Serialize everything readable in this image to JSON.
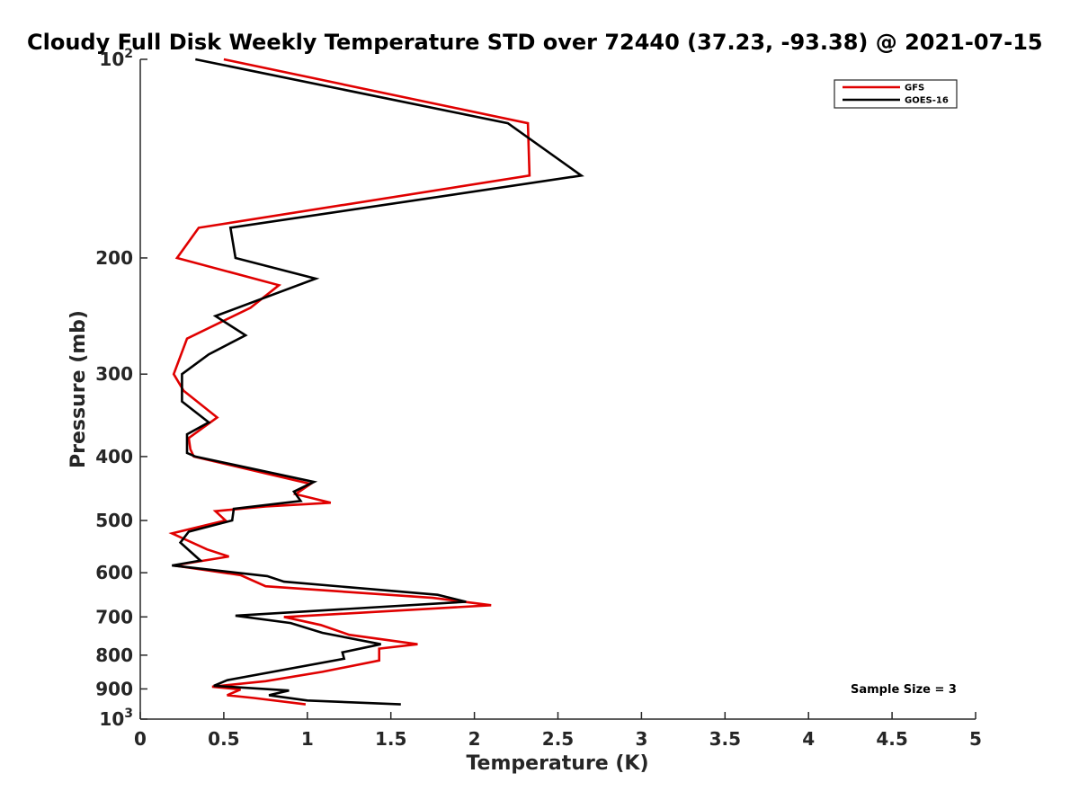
{
  "chart_data": {
    "type": "line",
    "title": "Cloudy Full Disk Weekly Temperature STD over 72440 (37.23, -93.38) @ 2021-07-15",
    "xlabel": "Temperature (K)",
    "ylabel": "Pressure (mb)",
    "xlim": [
      0,
      5
    ],
    "ylim": [
      100,
      1000
    ],
    "y_scale": "log",
    "y_reversed": true,
    "x_ticks": [
      "0",
      "0.5",
      "1",
      "1.5",
      "2",
      "2.5",
      "3",
      "3.5",
      "4",
      "4.5",
      "5"
    ],
    "x_tick_values": [
      0,
      0.5,
      1,
      1.5,
      2,
      2.5,
      3,
      3.5,
      4,
      4.5,
      5
    ],
    "y_ticks": [
      {
        "value": 100,
        "base": "10",
        "exp": "2"
      },
      {
        "value": 200,
        "label": "200"
      },
      {
        "value": 300,
        "label": "300"
      },
      {
        "value": 400,
        "label": "400"
      },
      {
        "value": 500,
        "label": "500"
      },
      {
        "value": 600,
        "label": "600"
      },
      {
        "value": 700,
        "label": "700"
      },
      {
        "value": 800,
        "label": "800"
      },
      {
        "value": 900,
        "label": "900"
      },
      {
        "value": 1000,
        "base": "10",
        "exp": "3"
      }
    ],
    "grid": false,
    "legend_position": "top-right",
    "annotation": "Sample Size = 3",
    "series": [
      {
        "name": "GFS",
        "color": "#e00000",
        "points": [
          [
            0.5,
            100
          ],
          [
            2.32,
            125
          ],
          [
            2.33,
            150
          ],
          [
            0.35,
            180
          ],
          [
            0.22,
            200
          ],
          [
            0.83,
            220
          ],
          [
            0.66,
            238
          ],
          [
            0.28,
            265
          ],
          [
            0.2,
            300
          ],
          [
            0.26,
            318
          ],
          [
            0.46,
            349
          ],
          [
            0.29,
            375
          ],
          [
            0.3,
            390
          ],
          [
            0.32,
            400
          ],
          [
            1.02,
            440
          ],
          [
            0.93,
            456
          ],
          [
            1.14,
            470
          ],
          [
            0.75,
            476
          ],
          [
            0.45,
            484
          ],
          [
            0.51,
            500
          ],
          [
            0.19,
            523
          ],
          [
            0.4,
            553
          ],
          [
            0.53,
            567
          ],
          [
            0.2,
            585
          ],
          [
            0.6,
            605
          ],
          [
            0.75,
            629
          ],
          [
            1.75,
            655
          ],
          [
            2.1,
            672
          ],
          [
            0.88,
            700
          ],
          [
            0.86,
            700
          ],
          [
            1.08,
            720
          ],
          [
            1.25,
            745
          ],
          [
            1.66,
            770
          ],
          [
            1.43,
            782
          ],
          [
            1.43,
            815
          ],
          [
            1.09,
            848
          ],
          [
            0.75,
            876
          ],
          [
            0.43,
            893
          ],
          [
            0.6,
            902
          ],
          [
            0.52,
            920
          ],
          [
            0.68,
            929
          ],
          [
            0.99,
            950
          ]
        ]
      },
      {
        "name": "GOES-16",
        "color": "#000000",
        "points": [
          [
            0.33,
            100
          ],
          [
            2.2,
            125
          ],
          [
            2.64,
            150
          ],
          [
            0.54,
            180
          ],
          [
            0.57,
            200
          ],
          [
            1.05,
            215
          ],
          [
            0.45,
            245
          ],
          [
            0.63,
            262
          ],
          [
            0.41,
            280
          ],
          [
            0.25,
            300
          ],
          [
            0.25,
            330
          ],
          [
            0.41,
            355
          ],
          [
            0.28,
            370
          ],
          [
            0.28,
            395
          ],
          [
            0.33,
            400
          ],
          [
            1.04,
            437
          ],
          [
            0.92,
            452
          ],
          [
            0.96,
            467
          ],
          [
            0.56,
            480
          ],
          [
            0.55,
            500
          ],
          [
            0.29,
            520
          ],
          [
            0.24,
            540
          ],
          [
            0.36,
            575
          ],
          [
            0.19,
            585
          ],
          [
            0.76,
            607
          ],
          [
            0.86,
            619
          ],
          [
            1.78,
            648
          ],
          [
            1.95,
            664
          ],
          [
            0.57,
            697
          ],
          [
            0.9,
            715
          ],
          [
            1.09,
            740
          ],
          [
            1.44,
            770
          ],
          [
            1.21,
            792
          ],
          [
            1.22,
            810
          ],
          [
            0.52,
            873
          ],
          [
            0.44,
            890
          ],
          [
            0.89,
            905
          ],
          [
            0.77,
            920
          ],
          [
            1.0,
            937
          ],
          [
            1.56,
            950
          ]
        ]
      }
    ]
  }
}
